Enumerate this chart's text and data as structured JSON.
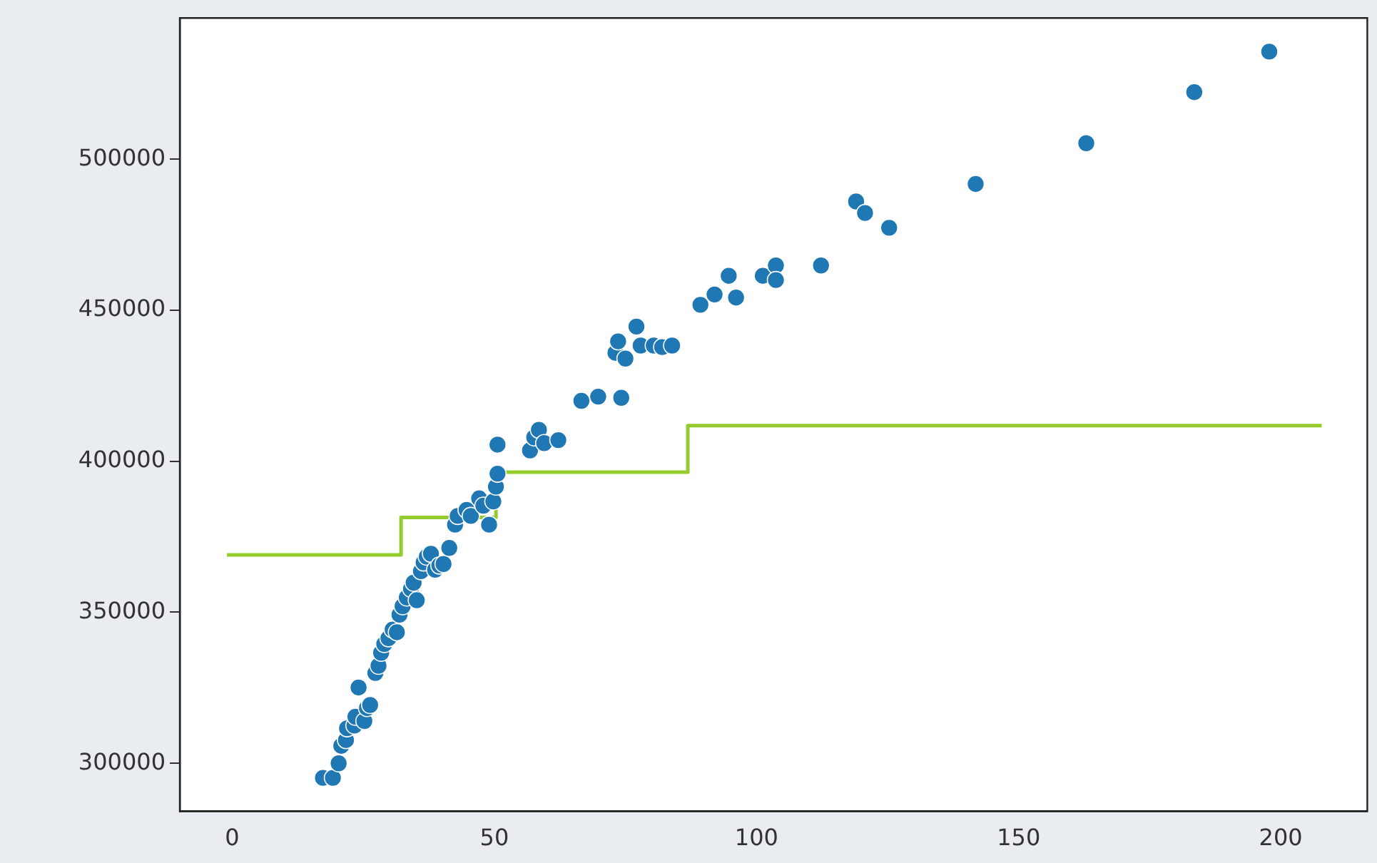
{
  "chart_data": {
    "type": "scatter",
    "xlim": [
      -10,
      216.5
    ],
    "ylim": [
      284100,
      546750
    ],
    "xticks": [
      0,
      50,
      100,
      150,
      200
    ],
    "yticks": [
      300000,
      350000,
      400000,
      450000,
      500000
    ],
    "grid": false,
    "legend": false,
    "series": [
      {
        "color": "#1f77b4",
        "marker": "circle",
        "x": [
          17.3,
          19.2,
          20.3,
          20.8,
          21.7,
          21.9,
          23.3,
          24.1,
          23.5,
          25.2,
          25.7,
          26.3,
          27.3,
          27.9,
          28.4,
          29.0,
          29.8,
          30.6,
          31.4,
          31.9,
          32.5,
          33.3,
          34.1,
          34.6,
          35.2,
          36.0,
          36.5,
          37.1,
          37.9,
          38.7,
          39.5,
          40.3,
          41.4,
          42.5,
          43.0,
          44.7,
          45.5,
          47.1,
          47.9,
          49.0,
          49.8,
          50.3,
          50.6,
          50.6,
          56.8,
          57.6,
          58.5,
          59.5,
          62.2,
          66.6,
          69.8,
          74.2,
          73.1,
          73.6,
          75.0,
          77.1,
          77.9,
          80.4,
          82.0,
          83.9,
          89.3,
          92.0,
          94.7,
          96.1,
          101.2,
          103.7,
          103.7,
          112.3,
          119.0,
          120.7,
          125.3,
          141.8,
          162.9,
          183.5,
          197.8
        ],
        "values": [
          295200,
          295200,
          300000,
          305800,
          307700,
          311600,
          312500,
          325100,
          315400,
          314000,
          318300,
          319300,
          329900,
          332300,
          336600,
          339500,
          341400,
          344300,
          343400,
          349200,
          352000,
          354900,
          357800,
          359800,
          354000,
          363600,
          366500,
          368400,
          369400,
          364100,
          365500,
          366000,
          371300,
          379000,
          381900,
          383900,
          381900,
          387700,
          385300,
          379000,
          386700,
          391600,
          405500,
          395900,
          403600,
          407900,
          410400,
          406000,
          407000,
          420000,
          421400,
          421000,
          435900,
          439700,
          434000,
          444600,
          438300,
          438300,
          437800,
          438300,
          451800,
          455200,
          461400,
          454200,
          461400,
          464800,
          460000,
          464800,
          486000,
          482200,
          477300,
          491800,
          505300,
          522200,
          535600
        ]
      },
      {
        "type": "step",
        "color": "#94cc2e",
        "x": [
          -1,
          32.2,
          50.3,
          86.9,
          207.8
        ],
        "values": [
          369000,
          381400,
          396400,
          411800,
          411800
        ]
      }
    ]
  }
}
